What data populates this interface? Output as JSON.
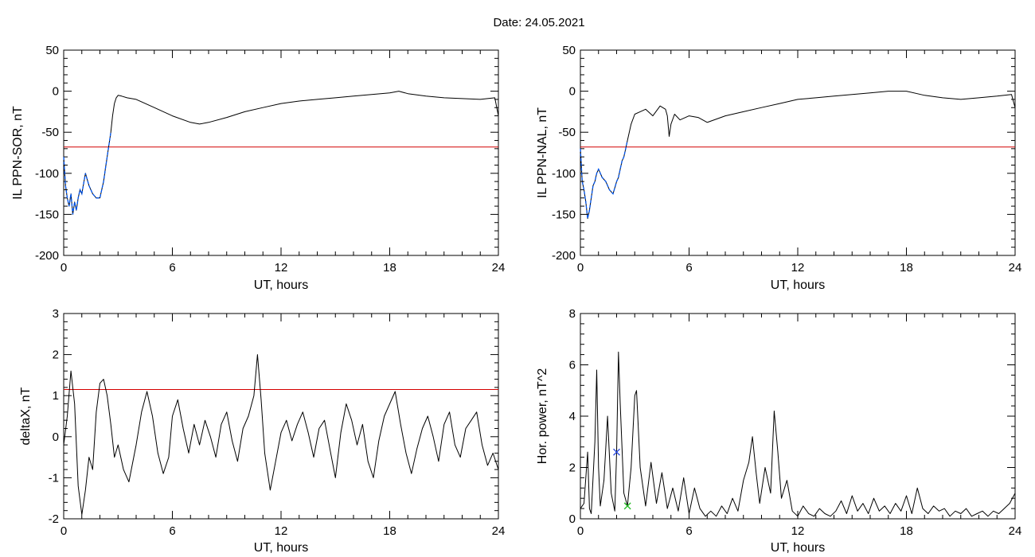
{
  "figure": {
    "title": "Date:  24.05.2021"
  },
  "chart_data": [
    {
      "id": "il-sor",
      "type": "line",
      "xlabel": "UT, hours",
      "ylabel": "IL PPN-SOR, nT",
      "xlim": [
        0,
        24
      ],
      "ylim": [
        -200,
        50
      ],
      "xticks": [
        0,
        6,
        12,
        18,
        24
      ],
      "yticks": [
        -200,
        -150,
        -100,
        -50,
        0,
        50
      ],
      "threshold": -68,
      "highlight_range": [
        0,
        2.6
      ],
      "series": [
        {
          "x": [
            0,
            0.1,
            0.2,
            0.3,
            0.4,
            0.5,
            0.6,
            0.7,
            0.8,
            0.9,
            1.0,
            1.2,
            1.4,
            1.6,
            1.8,
            2.0,
            2.1,
            2.2,
            2.3,
            2.4,
            2.5,
            2.6,
            2.7,
            2.8,
            2.9,
            3.0,
            3.2,
            3.5,
            4,
            5,
            6,
            7,
            7.5,
            8,
            9,
            10,
            11,
            12,
            13,
            14,
            15,
            16,
            17,
            18,
            18.5,
            19,
            20,
            21,
            22,
            23,
            23.8,
            24
          ],
          "y": [
            -80,
            -115,
            -130,
            -140,
            -125,
            -150,
            -135,
            -145,
            -130,
            -120,
            -125,
            -100,
            -115,
            -125,
            -130,
            -130,
            -120,
            -110,
            -95,
            -80,
            -65,
            -50,
            -30,
            -15,
            -8,
            -5,
            -6,
            -8,
            -10,
            -20,
            -30,
            -38,
            -40,
            -38,
            -32,
            -25,
            -20,
            -15,
            -12,
            -10,
            -8,
            -6,
            -4,
            -2,
            0,
            -3,
            -6,
            -8,
            -9,
            -10,
            -8,
            -30
          ]
        }
      ]
    },
    {
      "id": "il-nal",
      "type": "line",
      "xlabel": "UT, hours",
      "ylabel": "IL PPN-NAL, nT",
      "xlim": [
        0,
        24
      ],
      "ylim": [
        -200,
        50
      ],
      "xticks": [
        0,
        6,
        12,
        18,
        24
      ],
      "yticks": [
        -200,
        -150,
        -100,
        -50,
        0,
        50
      ],
      "threshold": -68,
      "highlight_range": [
        0,
        2.6
      ],
      "series": [
        {
          "x": [
            0,
            0.1,
            0.2,
            0.3,
            0.4,
            0.5,
            0.6,
            0.7,
            0.8,
            0.9,
            1.0,
            1.2,
            1.4,
            1.6,
            1.8,
            2.0,
            2.1,
            2.2,
            2.3,
            2.4,
            2.5,
            2.6,
            2.8,
            3.0,
            3.3,
            3.6,
            4.0,
            4.4,
            4.7,
            4.8,
            4.9,
            5.0,
            5.2,
            5.5,
            6,
            6.5,
            7,
            8,
            9,
            10,
            11,
            12,
            13,
            14,
            15,
            16,
            17,
            18,
            19,
            20,
            21,
            22,
            23,
            23.8,
            24
          ],
          "y": [
            -70,
            -110,
            -120,
            -135,
            -155,
            -145,
            -130,
            -115,
            -110,
            -100,
            -95,
            -105,
            -110,
            -120,
            -125,
            -110,
            -105,
            -95,
            -85,
            -80,
            -70,
            -60,
            -40,
            -28,
            -25,
            -22,
            -30,
            -18,
            -22,
            -30,
            -55,
            -40,
            -28,
            -35,
            -30,
            -32,
            -38,
            -30,
            -25,
            -20,
            -15,
            -10,
            -8,
            -6,
            -4,
            -2,
            0,
            0,
            -5,
            -8,
            -10,
            -8,
            -6,
            -4,
            -20
          ]
        }
      ]
    },
    {
      "id": "deltax",
      "type": "line",
      "xlabel": "UT, hours",
      "ylabel": "deltaX, nT",
      "xlim": [
        0,
        24
      ],
      "ylim": [
        -2,
        3
      ],
      "xticks": [
        0,
        6,
        12,
        18,
        24
      ],
      "yticks": [
        -2,
        -1,
        0,
        1,
        2,
        3
      ],
      "threshold": 1.15,
      "series": [
        {
          "x": [
            0,
            0.2,
            0.4,
            0.6,
            0.8,
            1.0,
            1.2,
            1.4,
            1.6,
            1.8,
            2.0,
            2.2,
            2.4,
            2.6,
            2.8,
            3.0,
            3.3,
            3.6,
            4.0,
            4.3,
            4.6,
            4.9,
            5.2,
            5.5,
            5.8,
            6.0,
            6.3,
            6.6,
            6.9,
            7.2,
            7.5,
            7.8,
            8.1,
            8.4,
            8.7,
            9.0,
            9.3,
            9.6,
            9.9,
            10.2,
            10.5,
            10.7,
            10.9,
            11.1,
            11.4,
            11.7,
            12.0,
            12.3,
            12.6,
            12.9,
            13.2,
            13.5,
            13.8,
            14.1,
            14.4,
            14.7,
            15.0,
            15.3,
            15.6,
            15.9,
            16.2,
            16.5,
            16.8,
            17.1,
            17.4,
            17.7,
            18.0,
            18.3,
            18.6,
            18.9,
            19.2,
            19.5,
            19.8,
            20.1,
            20.4,
            20.7,
            21.0,
            21.3,
            21.6,
            21.9,
            22.2,
            22.5,
            22.8,
            23.1,
            23.4,
            23.7,
            24.0
          ],
          "y": [
            -0.2,
            0.5,
            1.6,
            0.8,
            -1.2,
            -1.9,
            -1.3,
            -0.5,
            -0.8,
            0.6,
            1.3,
            1.4,
            1.0,
            0.3,
            -0.5,
            -0.2,
            -0.8,
            -1.1,
            -0.2,
            0.6,
            1.1,
            0.5,
            -0.4,
            -0.9,
            -0.5,
            0.5,
            0.9,
            0.2,
            -0.4,
            0.3,
            -0.2,
            0.4,
            0.0,
            -0.5,
            0.3,
            0.6,
            -0.1,
            -0.6,
            0.2,
            0.5,
            1.0,
            2.0,
            0.9,
            -0.4,
            -1.3,
            -0.6,
            0.1,
            0.4,
            -0.1,
            0.3,
            0.6,
            0.1,
            -0.5,
            0.2,
            0.4,
            -0.3,
            -1.0,
            0.1,
            0.8,
            0.4,
            -0.2,
            0.3,
            -0.6,
            -1.0,
            -0.1,
            0.5,
            0.8,
            1.1,
            0.3,
            -0.4,
            -0.9,
            -0.3,
            0.2,
            0.5,
            0.0,
            -0.6,
            0.3,
            0.6,
            -0.2,
            -0.5,
            0.2,
            0.4,
            0.6,
            -0.2,
            -0.7,
            -0.4,
            -0.8
          ]
        }
      ]
    },
    {
      "id": "hor-power",
      "type": "line",
      "xlabel": "UT, hours",
      "ylabel": "Hor. power, nT^2",
      "xlim": [
        0,
        24
      ],
      "ylim": [
        0,
        8
      ],
      "xticks": [
        0,
        6,
        12,
        18,
        24
      ],
      "yticks": [
        0,
        2,
        4,
        6,
        8
      ],
      "markers": [
        {
          "x": 2.0,
          "y": 2.6,
          "color": "#2244dd"
        },
        {
          "x": 2.6,
          "y": 0.5,
          "color": "#22bb22"
        }
      ],
      "series": [
        {
          "x": [
            0,
            0.2,
            0.4,
            0.5,
            0.6,
            0.8,
            0.9,
            1.0,
            1.1,
            1.3,
            1.5,
            1.7,
            1.9,
            2.0,
            2.1,
            2.2,
            2.4,
            2.6,
            2.8,
            3.0,
            3.1,
            3.3,
            3.6,
            3.9,
            4.2,
            4.5,
            4.8,
            5.1,
            5.4,
            5.7,
            6.0,
            6.3,
            6.6,
            6.9,
            7.2,
            7.5,
            7.8,
            8.1,
            8.4,
            8.7,
            9.0,
            9.3,
            9.5,
            9.7,
            9.9,
            10.2,
            10.5,
            10.7,
            10.9,
            11.1,
            11.4,
            11.7,
            12.0,
            12.3,
            12.6,
            12.9,
            13.2,
            13.5,
            13.8,
            14.1,
            14.4,
            14.7,
            15.0,
            15.3,
            15.6,
            15.9,
            16.2,
            16.5,
            16.8,
            17.1,
            17.4,
            17.7,
            18.0,
            18.3,
            18.6,
            18.9,
            19.2,
            19.5,
            19.8,
            20.1,
            20.4,
            20.7,
            21.0,
            21.3,
            21.6,
            21.9,
            22.2,
            22.5,
            22.8,
            23.1,
            23.4,
            23.7,
            24.0
          ],
          "y": [
            0.4,
            0.6,
            2.6,
            0.4,
            0.2,
            3.0,
            5.8,
            2.0,
            0.5,
            1.5,
            4.0,
            1.0,
            0.3,
            2.6,
            6.5,
            4.5,
            1.0,
            0.5,
            2.0,
            4.8,
            5.0,
            2.0,
            0.5,
            2.2,
            0.6,
            1.8,
            0.4,
            1.2,
            0.3,
            1.6,
            0.2,
            1.2,
            0.4,
            0.1,
            0.3,
            0.1,
            0.5,
            0.2,
            0.8,
            0.3,
            1.5,
            2.2,
            3.2,
            1.8,
            0.6,
            2.0,
            1.0,
            4.2,
            2.6,
            0.8,
            1.5,
            0.3,
            0.1,
            0.5,
            0.2,
            0.1,
            0.4,
            0.2,
            0.1,
            0.3,
            0.7,
            0.2,
            0.9,
            0.3,
            0.6,
            0.2,
            0.8,
            0.3,
            0.5,
            0.2,
            0.6,
            0.3,
            0.9,
            0.2,
            1.2,
            0.4,
            0.2,
            0.5,
            0.3,
            0.4,
            0.1,
            0.3,
            0.2,
            0.4,
            0.1,
            0.2,
            0.3,
            0.1,
            0.3,
            0.2,
            0.4,
            0.6,
            1.0
          ]
        }
      ]
    }
  ]
}
